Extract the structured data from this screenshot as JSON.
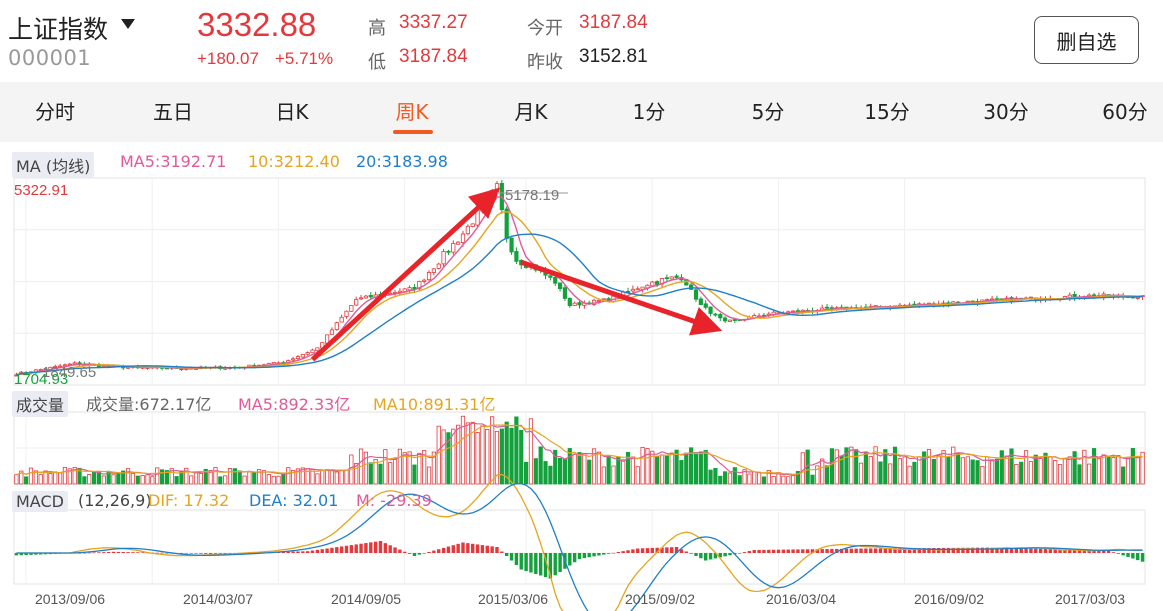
{
  "header": {
    "index_name": "上证指数",
    "index_code": "000001",
    "last_price": "3332.88",
    "change_abs": "+180.07",
    "change_pct": "+5.71%",
    "high_label": "高",
    "high_value": "3337.27",
    "low_label": "低",
    "low_value": "3187.84",
    "open_label": "今开",
    "open_value": "3187.84",
    "prev_close_label": "昨收",
    "prev_close_value": "3152.81",
    "remove_button": "删自选",
    "dropdown_icon": "caret-down-icon"
  },
  "tabs": [
    {
      "label": "分时",
      "active": false
    },
    {
      "label": "五日",
      "active": false
    },
    {
      "label": "日K",
      "active": false
    },
    {
      "label": "周K",
      "active": true
    },
    {
      "label": "月K",
      "active": false
    },
    {
      "label": "1分",
      "active": false
    },
    {
      "label": "5分",
      "active": false
    },
    {
      "label": "15分",
      "active": false
    },
    {
      "label": "30分",
      "active": false
    },
    {
      "label": "60分",
      "active": false
    }
  ],
  "ma_row": {
    "tag": "MA (均线)",
    "ma5": "MA5:3192.71",
    "ma10": "10:3212.40",
    "ma20": "20:3183.98"
  },
  "vol_row": {
    "tag": "成交量",
    "vol": "成交量:672.17亿",
    "ma5": "MA5:892.33亿",
    "ma10": "MA10:891.31亿"
  },
  "macd_row": {
    "tag": "MACD",
    "params": "(12,26,9)",
    "dif": "DIF: 17.32",
    "dea": "DEA: 32.01",
    "m": "M: -29.39"
  },
  "colors": {
    "up": "#e4393c",
    "down": "#13a13c",
    "ma5": "#e05a9a",
    "ma10": "#e6a520",
    "ma20": "#1f7fc9",
    "arrow": "#e8232a",
    "accent": "#f15a22"
  },
  "chart_data": {
    "type": "candlestick",
    "period": "weekly",
    "y_max_label": "5322.91",
    "y_min_label": "1704.93",
    "peak_label": "5178.19",
    "low_point_label": "1849.65",
    "ylim": [
      1704.93,
      5322.91
    ],
    "x_tick_labels": [
      "2013/09/06",
      "2014/03/07",
      "2014/09/05",
      "2015/03/06",
      "2015/09/02",
      "2016/03/04",
      "2016/09/02",
      "2017/03/03"
    ],
    "anchor_points": [
      {
        "week": 0,
        "close": 1900
      },
      {
        "week": 12,
        "close": 2080
      },
      {
        "week": 20,
        "close": 2020
      },
      {
        "week": 33,
        "close": 2000
      },
      {
        "week": 45,
        "close": 2010
      },
      {
        "week": 55,
        "close": 2100
      },
      {
        "week": 62,
        "close": 2350
      },
      {
        "week": 70,
        "close": 3200
      },
      {
        "week": 76,
        "close": 3300
      },
      {
        "week": 82,
        "close": 3400
      },
      {
        "week": 92,
        "close": 4350
      },
      {
        "week": 99,
        "close": 5150
      },
      {
        "week": 101,
        "close": 4300
      },
      {
        "week": 103,
        "close": 3900
      },
      {
        "week": 107,
        "close": 3750
      },
      {
        "week": 111,
        "close": 3500
      },
      {
        "week": 114,
        "close": 3100
      },
      {
        "week": 122,
        "close": 3200
      },
      {
        "week": 131,
        "close": 3500
      },
      {
        "week": 137,
        "close": 3600
      },
      {
        "week": 141,
        "close": 3100
      },
      {
        "week": 146,
        "close": 2800
      },
      {
        "week": 155,
        "close": 2950
      },
      {
        "week": 165,
        "close": 3020
      },
      {
        "week": 180,
        "close": 3080
      },
      {
        "week": 200,
        "close": 3180
      },
      {
        "week": 222,
        "close": 3270
      },
      {
        "week": 232,
        "close": 3250
      }
    ],
    "annotation_arrows": [
      {
        "from_week": 61,
        "from_value": 2150,
        "to_week": 97,
        "to_value": 4950
      },
      {
        "from_week": 104,
        "from_value": 3850,
        "to_week": 142,
        "to_value": 2750
      }
    ],
    "macd_hist_anchor": [
      {
        "week": 0,
        "m": -8
      },
      {
        "week": 20,
        "m": 4
      },
      {
        "week": 40,
        "m": -3
      },
      {
        "week": 60,
        "m": 6
      },
      {
        "week": 75,
        "m": 40
      },
      {
        "week": 82,
        "m": -10
      },
      {
        "week": 92,
        "m": 35
      },
      {
        "week": 99,
        "m": 20
      },
      {
        "week": 104,
        "m": -55
      },
      {
        "week": 110,
        "m": -85
      },
      {
        "week": 116,
        "m": -20
      },
      {
        "week": 128,
        "m": 15
      },
      {
        "week": 136,
        "m": 20
      },
      {
        "week": 142,
        "m": -25
      },
      {
        "week": 152,
        "m": 10
      },
      {
        "week": 175,
        "m": 15
      },
      {
        "week": 200,
        "m": 18
      },
      {
        "week": 225,
        "m": 8
      },
      {
        "week": 232,
        "m": -29
      }
    ]
  }
}
